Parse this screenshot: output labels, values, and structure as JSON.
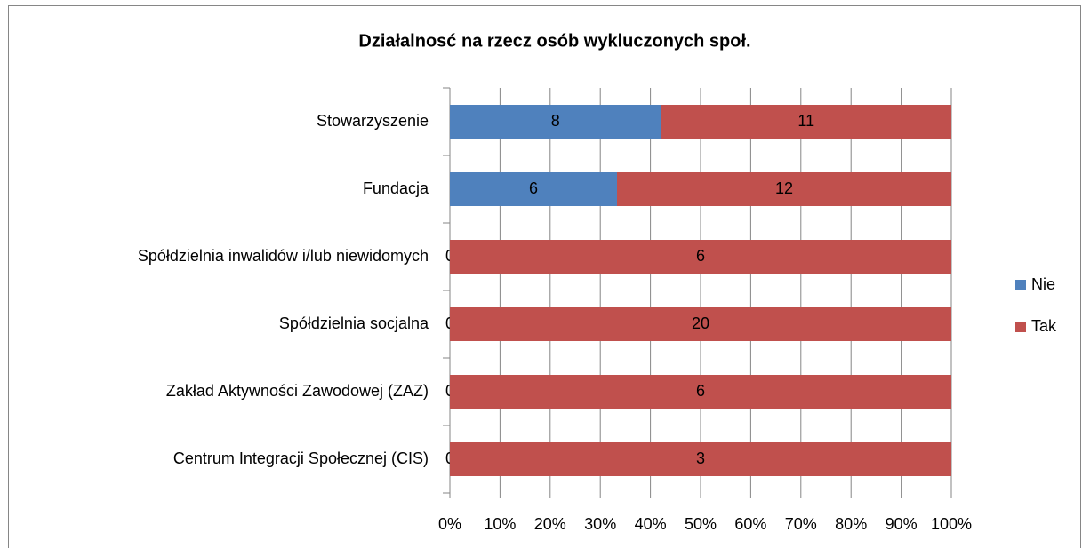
{
  "chart_data": {
    "type": "bar",
    "orientation": "horizontal",
    "stacking": "percent",
    "title": "Działalnosć na rzecz osób wykluczonych społ.",
    "categories": [
      "Stowarzyszenie",
      "Fundacja",
      "Spółdzielnia inwalidów i/lub niewidomych",
      "Spółdzielnia socjalna",
      "Zakład Aktywności Zawodowej (ZAZ)",
      "Centrum Integracji Społecznej (CIS)"
    ],
    "series": [
      {
        "name": "Nie",
        "color": "#4f81bd",
        "values": [
          8,
          6,
          0,
          0,
          0,
          0
        ]
      },
      {
        "name": "Tak",
        "color": "#c0504d",
        "values": [
          11,
          12,
          6,
          20,
          6,
          3
        ]
      }
    ],
    "xlim": [
      0,
      100
    ],
    "xticks": [
      {
        "value": 0,
        "label": "0%"
      },
      {
        "value": 10,
        "label": "10%"
      },
      {
        "value": 20,
        "label": "20%"
      },
      {
        "value": 30,
        "label": "30%"
      },
      {
        "value": 40,
        "label": "40%"
      },
      {
        "value": 50,
        "label": "50%"
      },
      {
        "value": 60,
        "label": "60%"
      },
      {
        "value": 70,
        "label": "70%"
      },
      {
        "value": 80,
        "label": "80%"
      },
      {
        "value": 90,
        "label": "90%"
      },
      {
        "value": 100,
        "label": "100%"
      }
    ],
    "grid": true,
    "legend": "right"
  }
}
